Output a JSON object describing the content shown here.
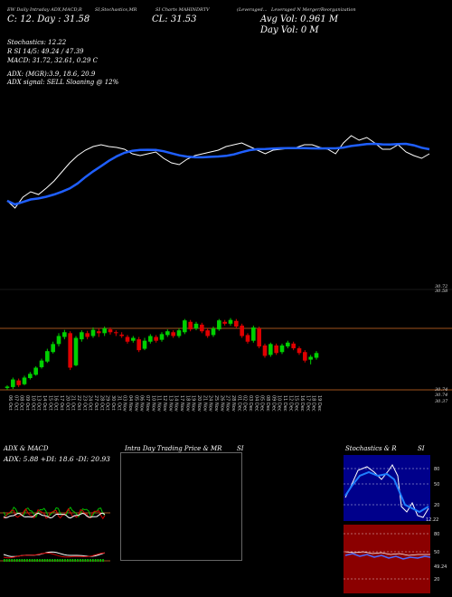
{
  "header": {
    "l1": "EW Daily Intraday ADX,MACD,R",
    "l1b": "SI,Stochastics,MR",
    "l1c": "SI Charts MAHINDRTV",
    "l1d": "(Leveraged...",
    "l1e": "Leveraged N Merger/Reorganization",
    "l2": "C: 12. Day : 31.58",
    "l2b": "CL: 31.53",
    "avg": "Avg Vol: 0.961 M",
    "dayvol": "Day Vol: 0   M"
  },
  "indicators": {
    "stoch": "Stochastics: 12.22",
    "rsi": "R           SI 14/5: 49.24  / 47.39",
    "macd": "MACD: 31.72,  32.61,  0.29  C",
    "adx": "ADX:                (MGR):3.9,  18.6,  20.9",
    "adxsig": "ADX  signal: SELL  Sloaning @ 12%"
  },
  "price_labels": {
    "p1": "30.72",
    "p2": "30.58",
    "p3": "30.74",
    "p4": "30.74",
    "p5": "30.37"
  },
  "dates": [
    "06 Oct",
    "07 Oct",
    "08 Oct",
    "09 Oct",
    "10 Oct",
    "13 Oct",
    "14 Oct",
    "15 Oct",
    "16 Oct",
    "17 Oct",
    "20 Oct",
    "21 Oct",
    "22 Oct",
    "23 Oct",
    "24 Oct",
    "27 Oct",
    "28 Oct",
    "29 Oct",
    "30 Oct",
    "31 Oct",
    "03 Nov",
    "04 Nov",
    "05 Nov",
    "06 Nov",
    "07 Nov",
    "10 Nov",
    "11 Nov",
    "12 Nov",
    "13 Nov",
    "14 Nov",
    "17 Nov",
    "18 Nov",
    "19 Nov",
    "20 Nov",
    "21 Nov",
    "24 Nov",
    "25 Nov",
    "26 Nov",
    "27 Nov",
    "28 Nov",
    "01 Dec",
    "02 Dec",
    "03 Dec",
    "04 Dec",
    "05 Dec",
    "08 Dec",
    "09 Dec",
    "10 Dec",
    "11 Dec",
    "12 Dec",
    "15 Dec",
    "16 Dec",
    "17 Dec",
    "18 Dec",
    "19 Dec"
  ],
  "panels": {
    "adx_title": "ADX  & MACD",
    "adx_vals": "ADX: 5.88  +DI: 18.6  -DI: 20.93",
    "intraday_title": "Intra  Day  Trading Price  & MR",
    "intraday_si": "SI",
    "stoch_title": "Stochastics & R",
    "stoch_si": "SI",
    "stoch_ticks": [
      "80",
      "50",
      "20",
      "12.22"
    ],
    "rsi_ticks": [
      "80",
      "50",
      "20",
      "49.24"
    ]
  },
  "chart_data": {
    "type": "candlestick",
    "title": "",
    "xlabel": "",
    "ylabel": "",
    "x": [
      "06 Oct",
      "07 Oct",
      "08 Oct",
      "09 Oct",
      "10 Oct",
      "13 Oct",
      "14 Oct",
      "15 Oct",
      "16 Oct",
      "17 Oct",
      "20 Oct",
      "21 Oct",
      "22 Oct",
      "23 Oct",
      "24 Oct",
      "27 Oct",
      "28 Oct",
      "29 Oct",
      "30 Oct",
      "31 Oct",
      "03 Nov",
      "04 Nov",
      "05 Nov",
      "06 Nov",
      "07 Nov",
      "10 Nov",
      "11 Nov",
      "12 Nov",
      "13 Nov",
      "14 Nov",
      "17 Nov",
      "18 Nov",
      "19 Nov",
      "20 Nov",
      "21 Nov",
      "24 Nov",
      "25 Nov",
      "26 Nov",
      "27 Nov",
      "28 Nov",
      "01 Dec",
      "02 Dec",
      "03 Dec",
      "04 Dec",
      "05 Dec",
      "08 Dec",
      "09 Dec",
      "10 Dec",
      "11 Dec",
      "12 Dec",
      "15 Dec",
      "16 Dec",
      "17 Dec",
      "18 Dec",
      "19 Dec"
    ],
    "ylim": [
      30.1,
      32.3
    ],
    "candles": [
      [
        30.12,
        30.15,
        30.08,
        30.18
      ],
      [
        30.14,
        30.3,
        30.1,
        30.34
      ],
      [
        30.28,
        30.18,
        30.14,
        30.32
      ],
      [
        30.2,
        30.34,
        30.18,
        30.38
      ],
      [
        30.33,
        30.42,
        30.3,
        30.46
      ],
      [
        30.4,
        30.55,
        30.38,
        30.58
      ],
      [
        30.56,
        30.7,
        30.53,
        30.74
      ],
      [
        30.68,
        30.9,
        30.65,
        30.95
      ],
      [
        30.88,
        31.05,
        30.85,
        31.1
      ],
      [
        31.05,
        31.22,
        31.0,
        31.28
      ],
      [
        31.2,
        31.3,
        31.15,
        31.35
      ],
      [
        31.28,
        30.55,
        30.5,
        31.32
      ],
      [
        30.6,
        31.18,
        30.58,
        31.22
      ],
      [
        31.15,
        31.3,
        31.1,
        31.34
      ],
      [
        31.28,
        31.2,
        31.15,
        31.33
      ],
      [
        31.22,
        31.35,
        31.18,
        31.4
      ],
      [
        31.32,
        31.28,
        31.2,
        31.38
      ],
      [
        31.28,
        31.38,
        31.22,
        31.42
      ],
      [
        31.36,
        31.3,
        31.25,
        31.4
      ],
      [
        31.3,
        31.28,
        31.22,
        31.34
      ],
      [
        31.25,
        31.22,
        31.18,
        31.3
      ],
      [
        31.2,
        31.1,
        31.06,
        31.24
      ],
      [
        31.12,
        31.18,
        31.08,
        31.22
      ],
      [
        31.15,
        30.92,
        30.88,
        31.2
      ],
      [
        30.95,
        31.12,
        30.92,
        31.18
      ],
      [
        31.1,
        31.22,
        31.06,
        31.26
      ],
      [
        31.2,
        31.12,
        31.08,
        31.24
      ],
      [
        31.14,
        31.26,
        31.1,
        31.3
      ],
      [
        31.24,
        31.32,
        31.2,
        31.36
      ],
      [
        31.3,
        31.22,
        31.18,
        31.34
      ],
      [
        31.22,
        31.34,
        31.18,
        31.38
      ],
      [
        31.3,
        31.55,
        31.26,
        31.58
      ],
      [
        31.52,
        31.36,
        31.32,
        31.56
      ],
      [
        31.38,
        31.48,
        31.34,
        31.52
      ],
      [
        31.46,
        31.32,
        31.28,
        31.5
      ],
      [
        31.34,
        31.22,
        31.18,
        31.38
      ],
      [
        31.24,
        31.38,
        31.2,
        31.42
      ],
      [
        31.36,
        31.55,
        31.33,
        31.58
      ],
      [
        31.52,
        31.48,
        31.44,
        31.56
      ],
      [
        31.48,
        31.56,
        31.44,
        31.6
      ],
      [
        31.54,
        31.42,
        31.38,
        31.58
      ],
      [
        31.44,
        31.22,
        31.18,
        31.48
      ],
      [
        31.24,
        31.1,
        31.06,
        31.28
      ],
      [
        31.12,
        31.4,
        31.08,
        31.44
      ],
      [
        31.38,
        31.0,
        30.96,
        31.42
      ],
      [
        31.02,
        30.8,
        30.76,
        31.06
      ],
      [
        30.82,
        31.05,
        30.78,
        31.08
      ],
      [
        31.02,
        30.86,
        30.82,
        31.06
      ],
      [
        30.88,
        31.02,
        30.84,
        31.06
      ],
      [
        31.0,
        31.08,
        30.96,
        31.12
      ],
      [
        31.06,
        30.96,
        30.92,
        31.1
      ],
      [
        30.96,
        30.86,
        30.82,
        31.0
      ],
      [
        30.88,
        30.7,
        30.66,
        30.92
      ],
      [
        30.72,
        30.78,
        30.62,
        30.82
      ],
      [
        30.76,
        30.86,
        30.72,
        30.9
      ]
    ],
    "upper_series": [
      {
        "name": "",
        "values": [
          222,
          230,
          218,
          212,
          215,
          208,
          200,
          190,
          180,
          172,
          166,
          162,
          160,
          162,
          163,
          165,
          170,
          172,
          170,
          168,
          175,
          180,
          182,
          176,
          172,
          170,
          168,
          166,
          162,
          160,
          158,
          162,
          166,
          170,
          166,
          165,
          164,
          163,
          160,
          160,
          163,
          165,
          170,
          158,
          150,
          155,
          152,
          158,
          165,
          165,
          160,
          168,
          172,
          175,
          170
        ]
      }
    ]
  }
}
